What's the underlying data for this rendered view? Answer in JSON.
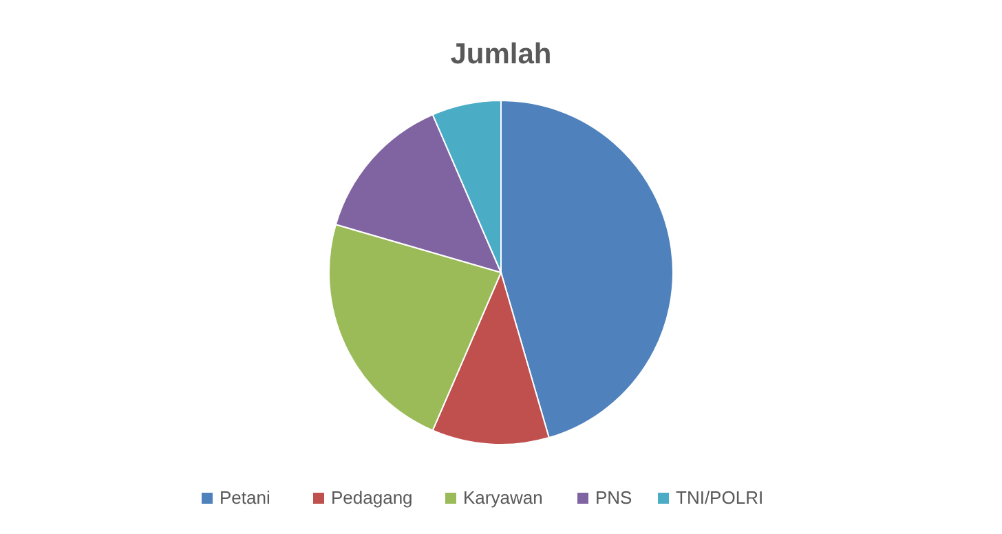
{
  "chart_data": {
    "type": "pie",
    "title": "Jumlah",
    "categories": [
      "Petani",
      "Pedagang",
      "Karyawan",
      "PNS",
      "TNI/POLRI"
    ],
    "values": [
      45.5,
      11,
      23,
      14,
      6.5
    ],
    "colors": [
      "#4f81bd",
      "#c0504d",
      "#9bbb59",
      "#8064a2",
      "#4bacc6"
    ],
    "legend": "bottom"
  }
}
